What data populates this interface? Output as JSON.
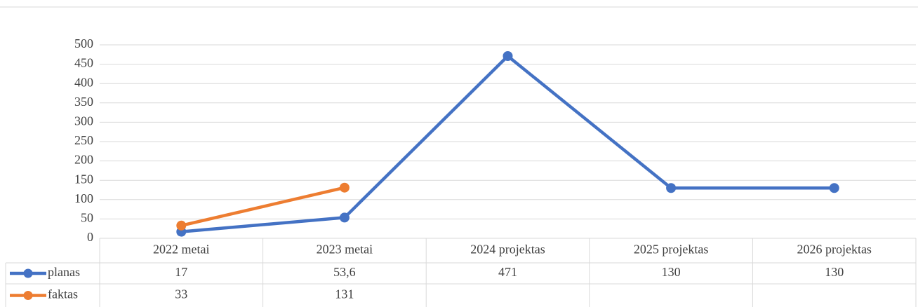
{
  "chart_data": {
    "type": "line",
    "categories": [
      "2022 metai",
      "2023 metai",
      "2024 projektas",
      "2025 projektas",
      "2026 projektas"
    ],
    "series": [
      {
        "name": "planas",
        "color": "#4472c4",
        "values": [
          17,
          53.6,
          471,
          130,
          130
        ],
        "value_labels": [
          "17",
          "53,6",
          "471",
          "130",
          "130"
        ]
      },
      {
        "name": "faktas",
        "color": "#ed7d31",
        "values": [
          33,
          131,
          null,
          null,
          null
        ]
      }
    ],
    "ylim": [
      0,
      500
    ],
    "yticks": [
      0,
      50,
      100,
      150,
      200,
      250,
      300,
      350,
      400,
      450,
      500
    ],
    "grid": true
  }
}
